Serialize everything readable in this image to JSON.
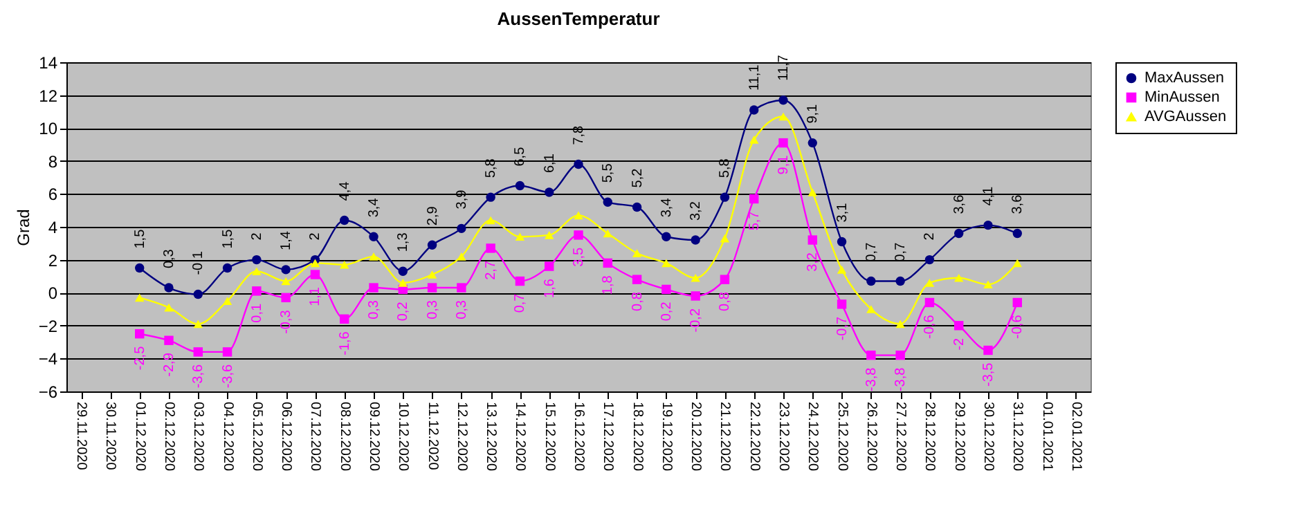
{
  "chart_data": {
    "type": "line",
    "title": "AussenTemperatur",
    "ylabel": "Grad",
    "categories": [
      "29.11.2020",
      "30.11.2020",
      "01.12.2020",
      "02.12.2020",
      "03.12.2020",
      "04.12.2020",
      "05.12.2020",
      "06.12.2020",
      "07.12.2020",
      "08.12.2020",
      "09.12.2020",
      "10.12.2020",
      "11.12.2020",
      "12.12.2020",
      "13.12.2020",
      "14.12.2020",
      "15.12.2020",
      "16.12.2020",
      "17.12.2020",
      "18.12.2020",
      "19.12.2020",
      "20.12.2020",
      "21.12.2020",
      "22.12.2020",
      "23.12.2020",
      "24.12.2020",
      "25.12.2020",
      "26.12.2020",
      "27.12.2020",
      "28.12.2020",
      "29.12.2020",
      "30.12.2020",
      "31.12.2020",
      "01.01.2021",
      "02.01.2021"
    ],
    "series": [
      {
        "name": "MaxAussen",
        "color": "#000080",
        "marker": "circle",
        "values": [
          null,
          null,
          1.5,
          0.3,
          -0.1,
          1.5,
          2,
          1.4,
          2,
          4.4,
          3.4,
          1.3,
          2.9,
          3.9,
          5.8,
          6.5,
          6.1,
          7.8,
          5.5,
          5.2,
          3.4,
          3.2,
          5.8,
          11.1,
          11.7,
          9.1,
          3.1,
          0.7,
          0.7,
          2,
          3.6,
          4.1,
          3.6,
          null,
          null
        ],
        "value_labels": [
          null,
          null,
          "1,5",
          "0,3",
          "-0,1",
          "1,5",
          "2",
          "1,4",
          "2",
          "4,4",
          "3,4",
          "1,3",
          "2,9",
          "3,9",
          "5,8",
          "6,5",
          "6,1",
          "7,8",
          "5,5",
          "5,2",
          "3,4",
          "3,2",
          "5,8",
          "11,1",
          "11,7",
          "9,1",
          "3,1",
          "0,7",
          "0,7",
          "2",
          "3,6",
          "4,1",
          "3,6",
          null,
          null
        ]
      },
      {
        "name": "MinAussen",
        "color": "#ff00ff",
        "marker": "square",
        "values": [
          null,
          null,
          -2.5,
          -2.9,
          -3.6,
          -3.6,
          0.1,
          -0.3,
          1.1,
          -1.6,
          0.3,
          0.2,
          0.3,
          0.3,
          2.7,
          0.7,
          1.6,
          3.5,
          1.8,
          0.8,
          0.2,
          -0.2,
          0.8,
          5.7,
          9.1,
          3.2,
          -0.7,
          -3.8,
          -3.8,
          -0.6,
          -2,
          -3.5,
          -0.6,
          null,
          null
        ],
        "value_labels": [
          null,
          null,
          "-2,5",
          "-2,9",
          "-3,6",
          "-3,6",
          "0,1",
          "-0,3",
          "1,1",
          "-1,6",
          "0,3",
          "0,2",
          "0,3",
          "0,3",
          "2,7",
          "0,7",
          "1,6",
          "3,5",
          "1,8",
          "0,8",
          "0,2",
          "-0,2",
          "0,8",
          "5,7",
          "9,1",
          "3,2",
          "-0,7",
          "-3,8",
          "-3,8",
          "-0,6",
          "-2",
          "-3,5",
          "-0,6",
          null,
          null
        ]
      },
      {
        "name": "AVGAussen",
        "color": "#ffff00",
        "marker": "triangle",
        "values": [
          null,
          null,
          -0.3,
          -0.9,
          -1.9,
          -0.5,
          1.3,
          0.7,
          1.8,
          1.7,
          2.2,
          0.6,
          1.1,
          2.2,
          4.4,
          3.4,
          3.5,
          4.7,
          3.6,
          2.4,
          1.8,
          0.9,
          3.3,
          9.3,
          10.7,
          6.1,
          1.4,
          -1,
          -1.9,
          0.6,
          0.9,
          0.5,
          1.8,
          null,
          null
        ]
      }
    ],
    "ylim": [
      -6,
      14
    ],
    "yticks": [
      -6,
      -4,
      -2,
      0,
      2,
      4,
      6,
      8,
      10,
      12,
      14
    ],
    "grid": "y",
    "legend": "right"
  }
}
